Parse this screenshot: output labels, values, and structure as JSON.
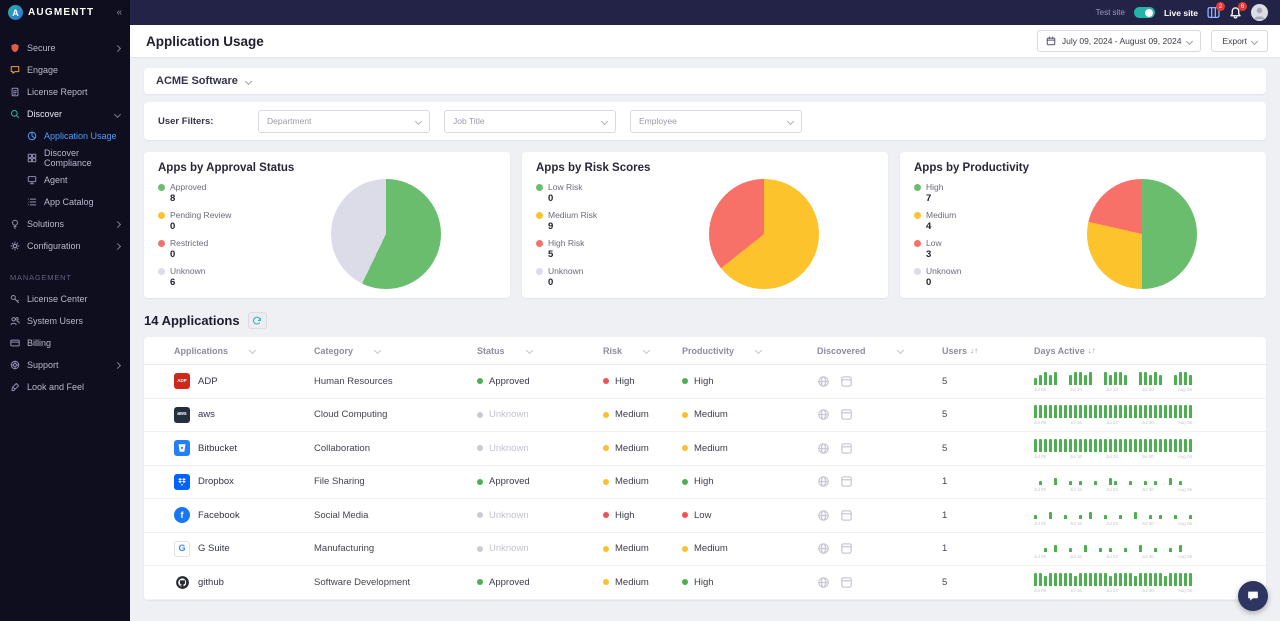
{
  "brand": {
    "name": "AUGMENTT",
    "logo_letter": "A"
  },
  "topbar": {
    "test_site_label": "Test site",
    "live_site_label": "Live site",
    "apps_badge": "2",
    "alerts_badge": "6"
  },
  "sidebar": {
    "items": [
      {
        "label": "Secure"
      },
      {
        "label": "Engage"
      },
      {
        "label": "License Report"
      },
      {
        "label": "Discover"
      },
      {
        "label": "Application Usage"
      },
      {
        "label": "Discover Compliance"
      },
      {
        "label": "Agent"
      },
      {
        "label": "App Catalog"
      },
      {
        "label": "Solutions"
      },
      {
        "label": "Configuration"
      }
    ],
    "section_label": "MANAGEMENT",
    "management_items": [
      {
        "label": "License Center"
      },
      {
        "label": "System Users"
      },
      {
        "label": "Billing"
      },
      {
        "label": "Support"
      },
      {
        "label": "Look and Feel"
      }
    ]
  },
  "header": {
    "title": "Application Usage",
    "date_range": "July 09, 2024 - August 09, 2024",
    "export_label": "Export"
  },
  "company_selector": {
    "name": "ACME Software"
  },
  "filters": {
    "label": "User Filters:",
    "department_placeholder": "Department",
    "job_title_placeholder": "Job Title",
    "employee_placeholder": "Employee"
  },
  "charts": [
    {
      "type": "pie",
      "title": "Apps by Approval Status",
      "slices": [
        {
          "label": "Approved",
          "value": 8,
          "color": "#69bd6d"
        },
        {
          "label": "Pending Review",
          "value": 0,
          "color": "#fcc32c"
        },
        {
          "label": "Restricted",
          "value": 0,
          "color": "#f4726b"
        },
        {
          "label": "Unknown",
          "value": 6,
          "color": "#dcdce8"
        }
      ]
    },
    {
      "type": "pie",
      "title": "Apps by Risk Scores",
      "slices": [
        {
          "label": "Low Risk",
          "value": 0,
          "color": "#69bd6d"
        },
        {
          "label": "Medium Risk",
          "value": 9,
          "color": "#fcc32c"
        },
        {
          "label": "High Risk",
          "value": 5,
          "color": "#f87168"
        },
        {
          "label": "Unknown",
          "value": 0,
          "color": "#dcdce8"
        }
      ]
    },
    {
      "type": "pie",
      "title": "Apps by Productivity",
      "slices": [
        {
          "label": "High",
          "value": 7,
          "color": "#69bd6d"
        },
        {
          "label": "Medium",
          "value": 4,
          "color": "#fcc32c"
        },
        {
          "label": "Low",
          "value": 3,
          "color": "#f87168"
        },
        {
          "label": "Unknown",
          "value": 0,
          "color": "#dcdce8"
        }
      ]
    }
  ],
  "applications_header": {
    "count_label": "14 Applications"
  },
  "table": {
    "columns": [
      {
        "label": "Applications"
      },
      {
        "label": "Category"
      },
      {
        "label": "Status"
      },
      {
        "label": "Risk"
      },
      {
        "label": "Productivity"
      },
      {
        "label": "Discovered"
      },
      {
        "label": "Users"
      },
      {
        "label": "Days Active"
      }
    ],
    "sort_icon": "↓↑",
    "sparkline_ticks": [
      "Jul 09",
      "Jul 16",
      "Jul 23",
      "Jul 30",
      "Aug 06"
    ],
    "rows": [
      {
        "name": "ADP",
        "icon_text": "ADP",
        "icon_bg": "#d0271d",
        "icon_fg": "#ffffff",
        "icon_shape": "square",
        "category": "Human Resources",
        "status": "Approved",
        "status_variant": "green",
        "risk": "High",
        "risk_variant": "red",
        "productivity": "High",
        "productivity_variant": "green",
        "users": "5",
        "days_active_bars": [
          2,
          3,
          4,
          3,
          4,
          0,
          0,
          3,
          4,
          4,
          3,
          4,
          0,
          0,
          4,
          3,
          4,
          4,
          3,
          0,
          0,
          4,
          4,
          3,
          4,
          3,
          0,
          0,
          3,
          4,
          4,
          3
        ]
      },
      {
        "name": "aws",
        "icon_text": "aws",
        "icon_bg": "#232f3e",
        "icon_fg": "#ffffff",
        "icon_shape": "square",
        "category": "Cloud Computing",
        "status": "Unknown",
        "status_variant": "gray",
        "risk": "Medium",
        "risk_variant": "yellow",
        "productivity": "Medium",
        "productivity_variant": "yellow",
        "users": "5",
        "days_active_bars": [
          4,
          4,
          4,
          4,
          4,
          4,
          4,
          4,
          4,
          4,
          4,
          4,
          4,
          4,
          4,
          4,
          4,
          4,
          4,
          4,
          4,
          4,
          4,
          4,
          4,
          4,
          4,
          4,
          4,
          4,
          4,
          4
        ]
      },
      {
        "name": "Bitbucket",
        "icon_text": "",
        "icon_bg": "#2580f8",
        "icon_fg": "#ffffff",
        "icon_shape": "square",
        "category": "Collaboration",
        "status": "Unknown",
        "status_variant": "gray",
        "risk": "Medium",
        "risk_variant": "yellow",
        "productivity": "Medium",
        "productivity_variant": "yellow",
        "users": "5",
        "days_active_bars": [
          4,
          4,
          4,
          4,
          4,
          4,
          4,
          4,
          4,
          4,
          4,
          4,
          4,
          4,
          4,
          4,
          4,
          4,
          4,
          4,
          4,
          4,
          4,
          4,
          4,
          4,
          4,
          4,
          4,
          4,
          4,
          4
        ]
      },
      {
        "name": "Dropbox",
        "icon_text": "",
        "icon_bg": "#0062ff",
        "icon_fg": "#ffffff",
        "icon_shape": "square",
        "category": "File Sharing",
        "status": "Approved",
        "status_variant": "green",
        "risk": "Medium",
        "risk_variant": "yellow",
        "productivity": "High",
        "productivity_variant": "green",
        "users": "1",
        "days_active_bars": [
          0,
          1,
          0,
          0,
          2,
          0,
          0,
          1,
          0,
          1,
          0,
          0,
          1,
          0,
          0,
          2,
          1,
          0,
          0,
          1,
          0,
          0,
          1,
          0,
          1,
          0,
          0,
          2,
          0,
          1,
          0,
          0
        ]
      },
      {
        "name": "Facebook",
        "icon_text": "f",
        "icon_bg": "#1877f2",
        "icon_fg": "#ffffff",
        "icon_shape": "circle",
        "category": "Social Media",
        "status": "Unknown",
        "status_variant": "gray",
        "risk": "High",
        "risk_variant": "red",
        "productivity": "Low",
        "productivity_variant": "red",
        "users": "1",
        "days_active_bars": [
          1,
          0,
          0,
          2,
          0,
          0,
          1,
          0,
          0,
          1,
          0,
          2,
          0,
          0,
          1,
          0,
          0,
          1,
          0,
          0,
          2,
          0,
          0,
          1,
          0,
          1,
          0,
          0,
          1,
          0,
          0,
          1
        ]
      },
      {
        "name": "G Suite",
        "icon_text": "G",
        "icon_bg": "#ffffff",
        "icon_fg": "#4285F4",
        "icon_shape": "bordered",
        "category": "Manufacturing",
        "status": "Unknown",
        "status_variant": "gray",
        "risk": "Medium",
        "risk_variant": "yellow",
        "productivity": "Medium",
        "productivity_variant": "yellow",
        "users": "1",
        "days_active_bars": [
          0,
          0,
          1,
          0,
          2,
          0,
          0,
          1,
          0,
          0,
          2,
          0,
          0,
          1,
          0,
          1,
          0,
          0,
          1,
          0,
          0,
          2,
          0,
          0,
          1,
          0,
          0,
          1,
          0,
          2,
          0,
          0
        ]
      },
      {
        "name": "github",
        "icon_text": "",
        "icon_bg": "#ffffff",
        "icon_fg": "#24292e",
        "icon_shape": "circle",
        "category": "Software Development",
        "status": "Approved",
        "status_variant": "green",
        "risk": "Medium",
        "risk_variant": "yellow",
        "productivity": "High",
        "productivity_variant": "green",
        "users": "5",
        "days_active_bars": [
          4,
          4,
          3,
          4,
          4,
          4,
          4,
          4,
          3,
          4,
          4,
          4,
          4,
          4,
          4,
          3,
          4,
          4,
          4,
          4,
          3,
          4,
          4,
          4,
          4,
          4,
          3,
          4,
          4,
          4,
          4,
          4
        ]
      }
    ]
  }
}
